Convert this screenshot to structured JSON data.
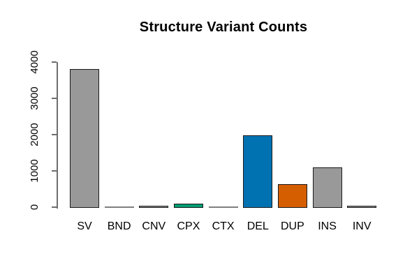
{
  "title": "Structure Variant Counts",
  "chart_data": {
    "type": "bar",
    "title": "Structure Variant Counts",
    "categories": [
      "SV",
      "BND",
      "CNV",
      "CPX",
      "CTX",
      "DEL",
      "DUP",
      "INS",
      "INV"
    ],
    "values": [
      3800,
      10,
      30,
      90,
      10,
      1960,
      620,
      1090,
      25
    ],
    "xlabel": "",
    "ylabel": "",
    "ylim": [
      0,
      4000
    ],
    "ytick_values": [
      0,
      1000,
      2000,
      3000,
      4000
    ],
    "ytick_labels": [
      "0",
      "1000",
      "2000",
      "3000",
      "4000"
    ],
    "grid": false,
    "legend": null,
    "bar_fill_colors": [
      "#999999",
      "#999999",
      "#999999",
      "#009E73",
      "#999999",
      "#0072B2",
      "#D55E00",
      "#999999",
      "#999999"
    ],
    "bar_border_colors": [
      "#1a1a1a",
      "#7f7f7f",
      "#1a1a1a",
      "#1a1a1a",
      "#7f7f7f",
      "#1a1a1a",
      "#1a1a1a",
      "#1a1a1a",
      "#1a1a1a"
    ],
    "axis_color": "#6e6e6e",
    "text_color": "#000000",
    "background_color": "#ffffff"
  }
}
